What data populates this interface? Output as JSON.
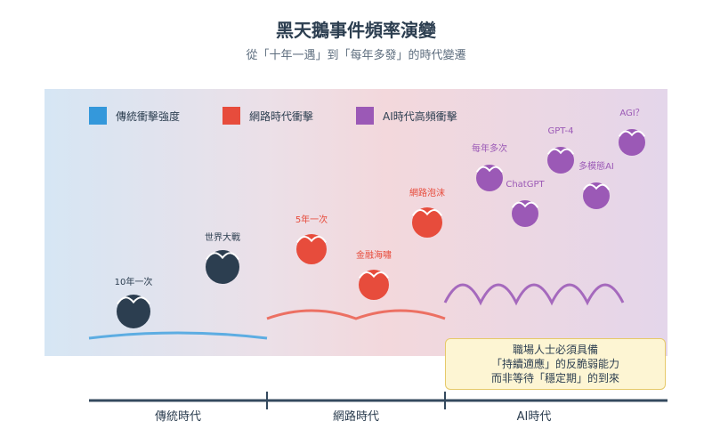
{
  "title": "黑天鵝事件頻率演變",
  "subtitle": "從「十年一遇」到「每年多發」的時代變遷",
  "legend": [
    {
      "label": "傳統衝擊強度",
      "color": "#3498db"
    },
    {
      "label": "網路時代衝擊",
      "color": "#e74c3c"
    },
    {
      "label": "AI時代高頻衝擊",
      "color": "#9b59b6"
    }
  ],
  "colors": {
    "traditional": "#2c3e50",
    "internet": "#e74c3c",
    "ai": "#9b59b6",
    "traditional_wave": "#5dade2",
    "internet_wave": "#ec7063",
    "ai_wave": "#a569bd",
    "axis": "#34495e"
  },
  "events": [
    {
      "label": "10年一次",
      "era": "traditional"
    },
    {
      "label": "世界大戰",
      "era": "traditional"
    },
    {
      "label": "5年一次",
      "era": "internet"
    },
    {
      "label": "金融海嘯",
      "era": "internet"
    },
    {
      "label": "網路泡沫",
      "era": "internet"
    },
    {
      "label": "每年多次",
      "era": "ai"
    },
    {
      "label": "ChatGPT",
      "era": "ai"
    },
    {
      "label": "GPT-4",
      "era": "ai"
    },
    {
      "label": "多模態AI",
      "era": "ai"
    },
    {
      "label": "AGI？",
      "era": "ai"
    }
  ],
  "note": {
    "lines": [
      "職場人士必須具備",
      "「持續適應」的反脆弱能力",
      "而非等待「穩定期」的到來"
    ]
  },
  "eras": [
    {
      "label": "傳統時代"
    },
    {
      "label": "網路時代"
    },
    {
      "label": "AI時代"
    }
  ]
}
